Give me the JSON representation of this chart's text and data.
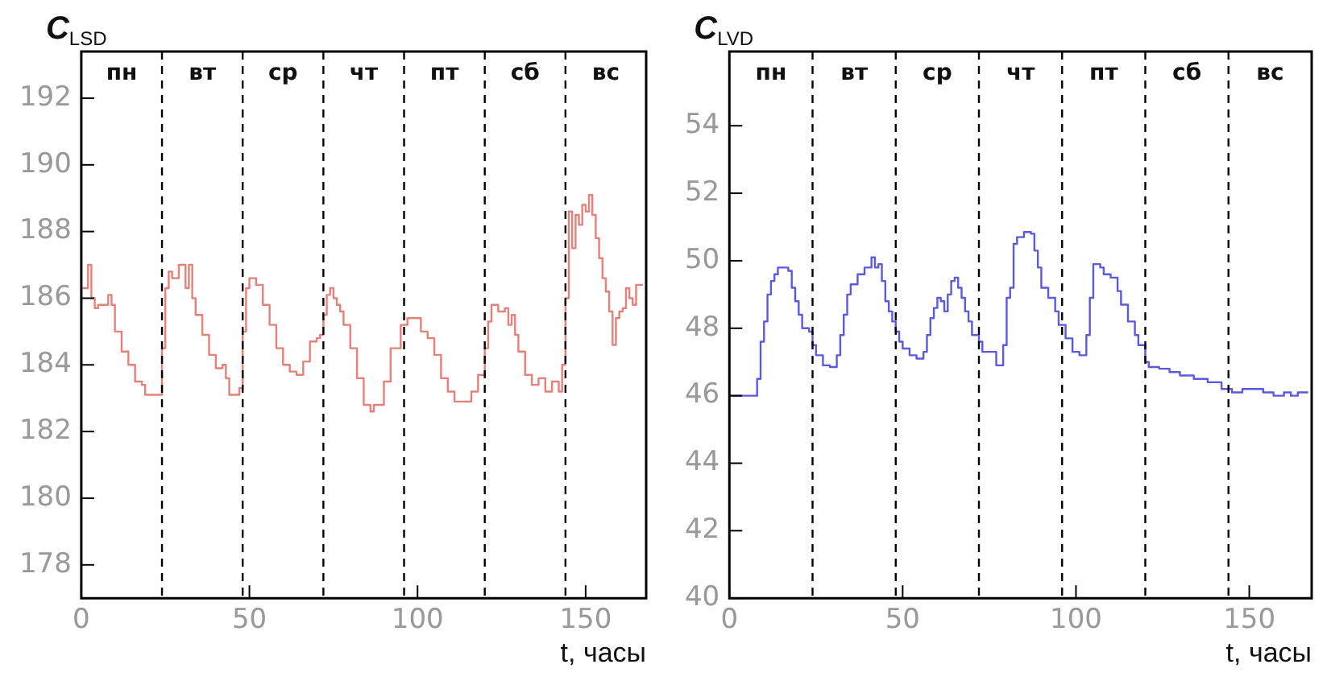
{
  "chart_data": [
    {
      "type": "step",
      "ylabel": "C$_{LSD}$",
      "xlabel": "t, часы",
      "xlim": [
        0,
        168
      ],
      "xticks": [
        0,
        50,
        100,
        150
      ],
      "ylim": [
        177,
        193.4
      ],
      "yticks": [
        178,
        180,
        182,
        184,
        186,
        188,
        190,
        192
      ],
      "grid": false,
      "legend": false,
      "line_style": "solid",
      "marker": "none",
      "ref_lines": [
        {
          "axis": "x",
          "value": 24,
          "color": "#000000",
          "line_style": "dashed"
        },
        {
          "axis": "x",
          "value": 48,
          "color": "#000000",
          "line_style": "dashed"
        },
        {
          "axis": "x",
          "value": 72,
          "color": "#000000",
          "line_style": "dashed"
        },
        {
          "axis": "x",
          "value": 96,
          "color": "#000000",
          "line_style": "dashed"
        },
        {
          "axis": "x",
          "value": 120,
          "color": "#000000",
          "line_style": "dashed"
        },
        {
          "axis": "x",
          "value": 144,
          "color": "#000000",
          "line_style": "dashed"
        }
      ],
      "annotations": [
        "пн",
        "вт",
        "ср",
        "чт",
        "пт",
        "сб",
        "вс"
      ],
      "series": [
        {
          "color": "#e8807a",
          "x": [
            0,
            1,
            2,
            3,
            4,
            5,
            8,
            9,
            10,
            12,
            14,
            16,
            18,
            19,
            20,
            24,
            25,
            26,
            27,
            29,
            31,
            32,
            33,
            34,
            36,
            38,
            40,
            42,
            43,
            44,
            45,
            47,
            48,
            49,
            50,
            52,
            54,
            56,
            58,
            60,
            62,
            64,
            66,
            68,
            69,
            70,
            71,
            72,
            73,
            74,
            75,
            76,
            77,
            78,
            80,
            82,
            84,
            86,
            87,
            90,
            92,
            95,
            97,
            99,
            101,
            103,
            105,
            107,
            109,
            111,
            113,
            116,
            118,
            120,
            121,
            122,
            124,
            126,
            127,
            128,
            129,
            130,
            132,
            134,
            136,
            138,
            140,
            142,
            143,
            144,
            145,
            146,
            147,
            148,
            149,
            150,
            151,
            152,
            153,
            154,
            155,
            156,
            157,
            158,
            159,
            160,
            161,
            162,
            163,
            164,
            165,
            167
          ],
          "values": [
            186.2,
            186.3,
            186.3,
            187.0,
            186.0,
            185.7,
            185.8,
            186.1,
            185.8,
            185.0,
            184.4,
            184.0,
            183.5,
            183.4,
            183.1,
            183.1,
            184.5,
            186.3,
            186.8,
            186.6,
            187.0,
            186.3,
            187.0,
            186.0,
            185.5,
            184.9,
            184.3,
            183.9,
            184.0,
            183.6,
            183.1,
            183.1,
            183.3,
            185.0,
            186.3,
            186.6,
            186.4,
            185.8,
            185.2,
            184.5,
            184.0,
            183.8,
            183.7,
            184.1,
            184.7,
            184.7,
            184.8,
            184.9,
            185.5,
            186.1,
            186.3,
            186.0,
            185.8,
            185.6,
            185.2,
            184.5,
            183.6,
            182.8,
            182.6,
            182.8,
            183.5,
            184.5,
            185.2,
            185.4,
            185.4,
            185.0,
            184.8,
            184.3,
            183.6,
            183.2,
            182.9,
            182.9,
            183.2,
            183.7,
            184.5,
            185.3,
            185.8,
            185.6,
            185.7,
            185.2,
            185.5,
            184.9,
            184.4,
            183.7,
            183.4,
            183.6,
            183.2,
            183.5,
            183.2,
            184.0,
            186.0,
            188.6,
            187.5,
            188.5,
            188.2,
            188.8,
            188.6,
            189.1,
            188.5,
            187.8,
            187.2,
            186.6,
            186.2,
            185.6,
            184.6,
            185.4,
            185.6,
            185.7,
            186.3,
            186.0,
            185.8,
            186.4
          ]
        }
      ]
    },
    {
      "type": "step",
      "ylabel": "C$_{LVD}$",
      "xlabel": "t, часы",
      "xlim": [
        0,
        168
      ],
      "xticks": [
        0,
        50,
        100,
        150
      ],
      "ylim": [
        40,
        56.2
      ],
      "yticks": [
        40,
        42,
        44,
        46,
        48,
        50,
        52,
        54
      ],
      "grid": false,
      "legend": false,
      "line_style": "solid",
      "marker": "none",
      "ref_lines": [
        {
          "axis": "x",
          "value": 24,
          "color": "#000000",
          "line_style": "dashed"
        },
        {
          "axis": "x",
          "value": 48,
          "color": "#000000",
          "line_style": "dashed"
        },
        {
          "axis": "x",
          "value": 72,
          "color": "#000000",
          "line_style": "dashed"
        },
        {
          "axis": "x",
          "value": 96,
          "color": "#000000",
          "line_style": "dashed"
        },
        {
          "axis": "x",
          "value": 120,
          "color": "#000000",
          "line_style": "dashed"
        },
        {
          "axis": "x",
          "value": 144,
          "color": "#000000",
          "line_style": "dashed"
        }
      ],
      "annotations": [
        "пн",
        "вт",
        "ср",
        "чт",
        "пт",
        "сб",
        "вс"
      ],
      "series": [
        {
          "color": "#5a5ae0",
          "x": [
            0,
            8,
            9,
            10,
            11,
            12,
            13,
            14,
            15,
            17,
            18,
            19,
            20,
            21,
            23,
            24,
            25,
            27,
            29,
            31,
            32,
            33,
            34,
            35,
            37,
            39,
            41,
            42,
            43,
            44,
            45,
            46,
            47,
            48,
            49,
            50,
            52,
            54,
            56,
            57,
            58,
            59,
            60,
            61,
            62,
            63,
            64,
            65,
            66,
            67,
            68,
            69,
            70,
            72,
            73,
            74,
            77,
            79,
            80,
            81,
            82,
            83,
            85,
            87,
            88,
            89,
            90,
            92,
            94,
            95,
            97,
            99,
            101,
            103,
            104,
            105,
            107,
            108,
            110,
            112,
            113,
            115,
            117,
            118,
            120,
            121,
            124,
            127,
            130,
            134,
            138,
            142,
            145,
            148,
            150,
            154,
            157,
            160,
            162,
            164,
            167
          ],
          "values": [
            46.0,
            46.0,
            46.5,
            47.6,
            48.2,
            49.0,
            49.4,
            49.6,
            49.8,
            49.8,
            49.7,
            49.2,
            48.8,
            48.4,
            48.0,
            47.9,
            47.5,
            47.2,
            46.9,
            46.85,
            47.2,
            47.8,
            48.4,
            49.0,
            49.3,
            49.6,
            49.8,
            50.1,
            49.8,
            49.9,
            49.4,
            48.8,
            48.5,
            48.2,
            47.9,
            47.6,
            47.4,
            47.2,
            47.1,
            47.3,
            47.8,
            48.3,
            48.6,
            48.9,
            48.8,
            48.5,
            49.0,
            49.4,
            49.5,
            49.2,
            48.9,
            48.5,
            48.2,
            47.8,
            47.6,
            47.3,
            47.3,
            46.9,
            47.5,
            48.9,
            49.2,
            50.5,
            50.7,
            50.85,
            50.8,
            50.3,
            49.8,
            49.2,
            48.9,
            48.5,
            48.1,
            47.7,
            47.3,
            47.2,
            47.8,
            48.9,
            49.9,
            49.8,
            49.6,
            49.5,
            49.1,
            48.7,
            48.2,
            47.8,
            47.5,
            47.0,
            46.85,
            46.8,
            46.7,
            46.6,
            46.5,
            46.4,
            46.2,
            46.1,
            46.2,
            46.2,
            46.1,
            46.0,
            46.1,
            46.0,
            46.1
          ]
        }
      ]
    }
  ]
}
